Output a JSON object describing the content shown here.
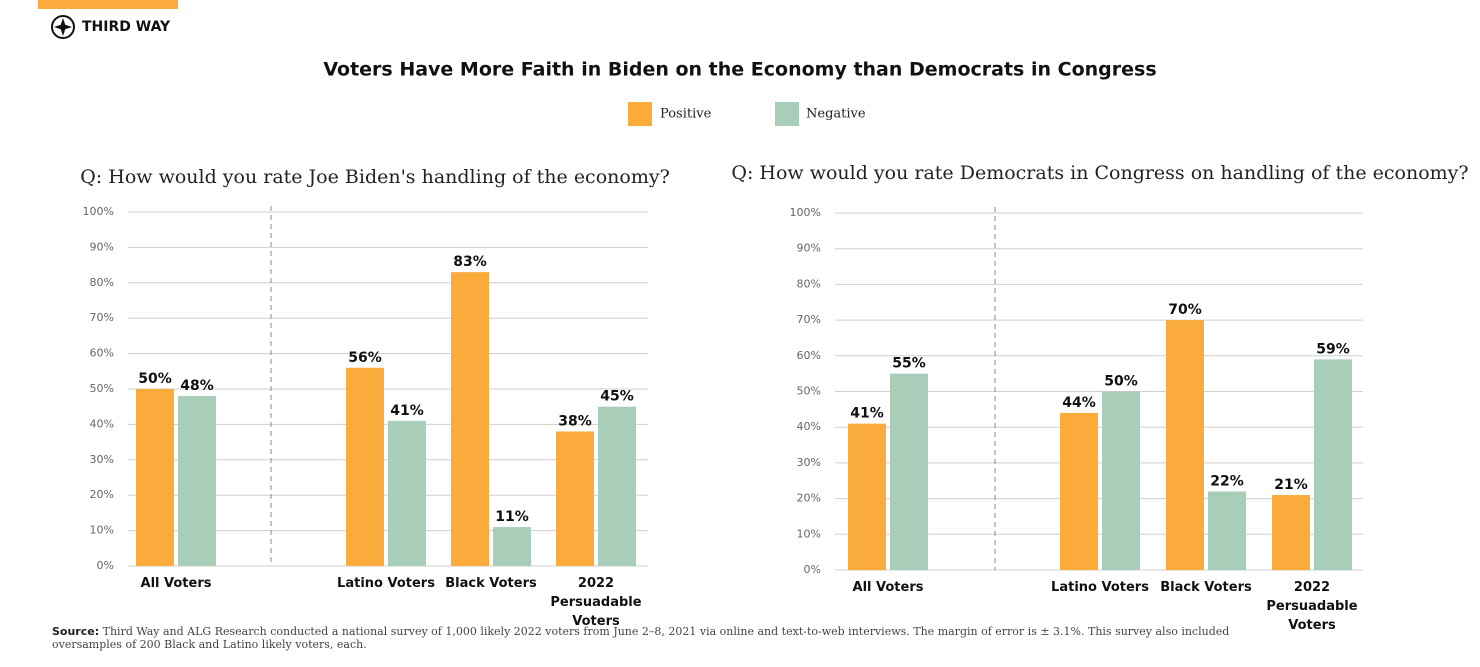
{
  "brand": "THIRD WAY",
  "title": "Voters Have More Faith in Biden on the Economy than Democrats in Congress",
  "source": {
    "label": "Source:",
    "text": "Third Way and ALG Research conducted a national survey of 1,000 likely 2022 voters from June 2–8, 2021 via online and text-to-web interviews. The margin of error is ± 3.1%. This survey also included oversamples of 200 Black and Latino likely voters, each."
  },
  "chart_data": [
    {
      "type": "bar",
      "title": "Q: How would you rate Joe Biden's handling of the economy?",
      "categories": [
        "All Voters",
        "Latino Voters",
        "Black Voters",
        "2022 Persuadable Voters"
      ],
      "series": [
        {
          "name": "Positive",
          "color": "#fbab3b",
          "values": [
            50,
            56,
            83,
            38
          ],
          "value_labels": [
            "50%",
            "56%",
            "83%",
            "38%"
          ]
        },
        {
          "name": "Negative",
          "color": "#a8cdb8",
          "values": [
            48,
            41,
            11,
            45
          ],
          "value_labels": [
            "48%",
            "41%",
            "11%",
            "45%"
          ]
        }
      ],
      "ylim": [
        0,
        100
      ],
      "yticks": [
        {
          "value": 0,
          "label": "0%"
        },
        {
          "value": 10,
          "label": "10%"
        },
        {
          "value": 20,
          "label": "20%"
        },
        {
          "value": 30,
          "label": "30%"
        },
        {
          "value": 40,
          "label": "40%"
        },
        {
          "value": 50,
          "label": "50%"
        },
        {
          "value": 60,
          "label": "60%"
        },
        {
          "value": 70,
          "label": "70%"
        },
        {
          "value": 80,
          "label": "80%"
        },
        {
          "value": 90,
          "label": "90%"
        },
        {
          "value": 100,
          "label": "100%"
        }
      ],
      "grid": true
    },
    {
      "type": "bar",
      "title": "Q: How would you rate Democrats in Congress on handling of the economy?",
      "categories": [
        "All Voters",
        "Latino Voters",
        "Black Voters",
        "2022 Persuadable Voters"
      ],
      "series": [
        {
          "name": "Positive",
          "color": "#fbab3b",
          "values": [
            41,
            44,
            70,
            21
          ],
          "value_labels": [
            "41%",
            "44%",
            "70%",
            "21%"
          ]
        },
        {
          "name": "Negative",
          "color": "#a8cdb8",
          "values": [
            55,
            50,
            22,
            59
          ],
          "value_labels": [
            "55%",
            "50%",
            "22%",
            "59%"
          ]
        }
      ],
      "ylim": [
        0,
        100
      ],
      "yticks": [
        {
          "value": 0,
          "label": "0%"
        },
        {
          "value": 10,
          "label": "10%"
        },
        {
          "value": 20,
          "label": "20%"
        },
        {
          "value": 30,
          "label": "30%"
        },
        {
          "value": 40,
          "label": "40%"
        },
        {
          "value": 50,
          "label": "50%"
        },
        {
          "value": 60,
          "label": "60%"
        },
        {
          "value": 70,
          "label": "70%"
        },
        {
          "value": 80,
          "label": "80%"
        },
        {
          "value": 90,
          "label": "90%"
        },
        {
          "value": 100,
          "label": "100%"
        }
      ],
      "grid": true
    }
  ]
}
